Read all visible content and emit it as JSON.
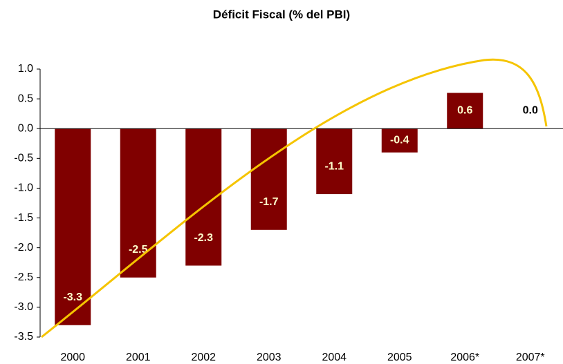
{
  "chart_data": {
    "type": "bar",
    "title": "Déficit Fiscal (% del PBI)",
    "categories": [
      "2000",
      "2001",
      "2002",
      "2003",
      "2004",
      "2005",
      "2006*",
      "2007*"
    ],
    "values": [
      -3.3,
      -2.5,
      -2.3,
      -1.7,
      -1.1,
      -0.4,
      0.6,
      0.0
    ],
    "value_labels": [
      "-3.3",
      "-2.5",
      "-2.3",
      "-1.7",
      "-1.1",
      "-0.4",
      "0.6",
      "0.0"
    ],
    "color": "#800000",
    "ylim": [
      -3.5,
      1.0
    ],
    "yticks": [
      {
        "value": 1.0,
        "label": "1.0"
      },
      0.5,
      {
        "value": 0.0,
        "label": "0.0"
      },
      -0.5,
      {
        "value": -1.0,
        "label": "-1.0"
      },
      -1.5,
      {
        "value": -2.0,
        "label": "-2.0"
      },
      -2.5,
      {
        "value": -3.0,
        "label": "-3.0"
      },
      {
        "value": -3.5,
        "label": "-3.5"
      }
    ]
  }
}
